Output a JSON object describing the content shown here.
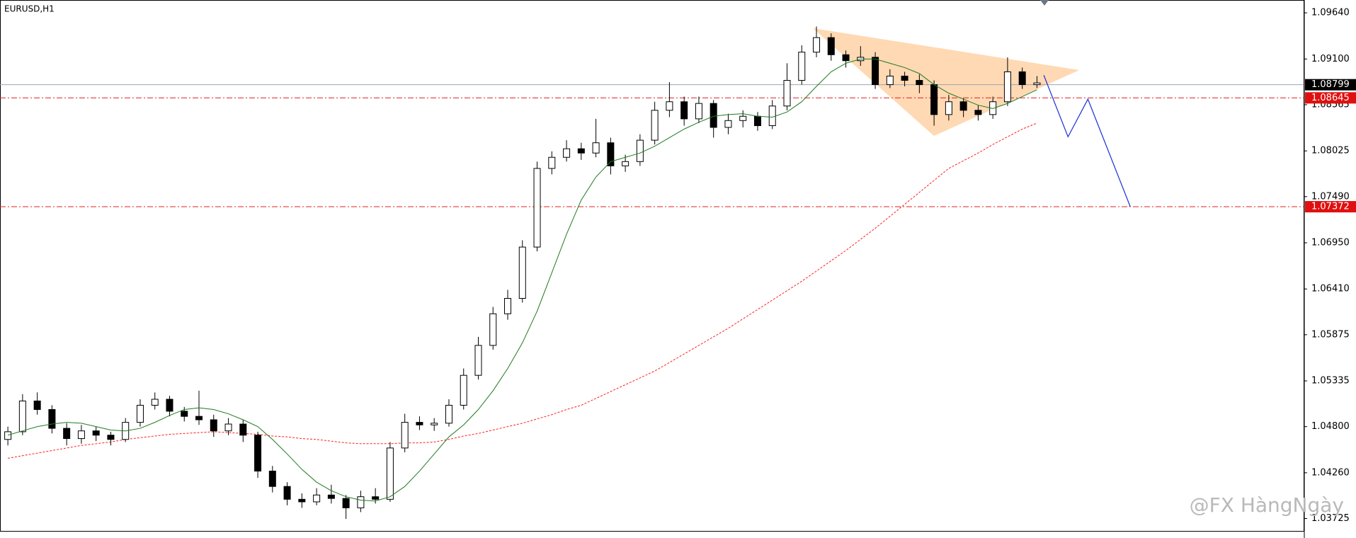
{
  "chart_data": {
    "type": "candlestick",
    "title": "EURUSD,H1",
    "watermark": "@FX HàngNgày",
    "open": [
      1.0465,
      1.0474,
      1.051,
      1.05,
      1.0478,
      1.0466,
      1.0475,
      1.047,
      1.0465,
      1.0485,
      1.0505,
      1.0512,
      1.0498,
      1.0492,
      1.0488,
      1.0475,
      1.0483,
      1.047,
      1.0428,
      1.041,
      1.0395,
      1.0392,
      1.04,
      1.0396,
      1.0385,
      1.0398,
      1.0395,
      1.0455,
      1.0485,
      1.0482,
      1.0484,
      1.0505,
      1.054,
      1.0575,
      1.0612,
      1.063,
      1.069,
      1.0782,
      1.0795,
      1.0805,
      1.08,
      1.0812,
      1.0785,
      1.079,
      1.0815,
      1.085,
      1.086,
      1.084,
      1.0858,
      1.083,
      1.0838,
      1.0843,
      1.0832,
      1.0855,
      1.0885,
      1.0918,
      1.0935,
      1.0915,
      1.0908,
      1.0912,
      1.088,
      1.089,
      1.0885,
      1.088,
      1.0845,
      1.086,
      1.085,
      1.0845,
      1.086,
      1.0895,
      1.088
    ],
    "high": [
      1.048,
      1.0518,
      1.052,
      1.0505,
      1.0484,
      1.0482,
      1.048,
      1.0474,
      1.049,
      1.0512,
      1.052,
      1.0516,
      1.0503,
      1.0522,
      1.0494,
      1.049,
      1.0488,
      1.0474,
      1.0434,
      1.0415,
      1.0402,
      1.0408,
      1.0412,
      1.04,
      1.0405,
      1.0408,
      1.0462,
      1.0495,
      1.0492,
      1.049,
      1.0512,
      1.0548,
      1.0585,
      1.062,
      1.064,
      1.0698,
      1.079,
      1.0802,
      1.0815,
      1.0812,
      1.084,
      1.0818,
      1.0798,
      1.0822,
      1.086,
      1.0883,
      1.0866,
      1.0866,
      1.0862,
      1.0846,
      1.085,
      1.0848,
      1.0862,
      1.0905,
      1.0926,
      1.0948,
      1.094,
      1.092,
      1.0925,
      1.0918,
      1.0898,
      1.0895,
      1.0892,
      1.0885,
      1.0868,
      1.0864,
      1.0856,
      1.0866,
      1.0912,
      1.09,
      1.089
    ],
    "low": [
      1.0458,
      1.047,
      1.0494,
      1.0472,
      1.0458,
      1.046,
      1.0463,
      1.0458,
      1.0462,
      1.048,
      1.05,
      1.0492,
      1.0486,
      1.0482,
      1.0468,
      1.047,
      1.0462,
      1.042,
      1.0403,
      1.0388,
      1.0385,
      1.0388,
      1.039,
      1.0372,
      1.038,
      1.039,
      1.0392,
      1.045,
      1.0476,
      1.0475,
      1.048,
      1.05,
      1.0535,
      1.057,
      1.0605,
      1.0625,
      1.0685,
      1.0775,
      1.079,
      1.0792,
      1.0795,
      1.0775,
      1.0778,
      1.0785,
      1.081,
      1.0842,
      1.0832,
      1.0835,
      1.0818,
      1.0822,
      1.083,
      1.0826,
      1.0828,
      1.085,
      1.088,
      1.0912,
      1.0908,
      1.09,
      1.0902,
      1.0875,
      1.0876,
      1.0878,
      1.087,
      1.0832,
      1.0838,
      1.0842,
      1.0838,
      1.084,
      1.0855,
      1.0875,
      1.0876
    ],
    "close": [
      1.0474,
      1.051,
      1.05,
      1.0478,
      1.0466,
      1.0475,
      1.047,
      1.0465,
      1.0485,
      1.0505,
      1.0512,
      1.0498,
      1.0492,
      1.0488,
      1.0475,
      1.0483,
      1.047,
      1.0428,
      1.041,
      1.0395,
      1.0392,
      1.04,
      1.0396,
      1.0385,
      1.0398,
      1.0395,
      1.0455,
      1.0485,
      1.0482,
      1.0484,
      1.0505,
      1.054,
      1.0575,
      1.0612,
      1.063,
      1.069,
      1.0782,
      1.0795,
      1.0805,
      1.08,
      1.0812,
      1.0785,
      1.079,
      1.0815,
      1.085,
      1.086,
      1.084,
      1.0858,
      1.083,
      1.0838,
      1.0843,
      1.0832,
      1.0855,
      1.0885,
      1.0918,
      1.0935,
      1.0915,
      1.0908,
      1.0912,
      1.088,
      1.089,
      1.0885,
      1.088,
      1.0845,
      1.086,
      1.085,
      1.0845,
      1.086,
      1.0895,
      1.088,
      1.0882
    ],
    "ma_fast": {
      "color": "#1f7a1f",
      "values": [
        1.047,
        1.0475,
        1.048,
        1.0483,
        1.0485,
        1.0484,
        1.048,
        1.0476,
        1.0475,
        1.0478,
        1.0485,
        1.0493,
        1.05,
        1.0502,
        1.05,
        1.0495,
        1.0488,
        1.048,
        1.0465,
        1.0448,
        1.043,
        1.0415,
        1.0405,
        1.0398,
        1.0394,
        1.0393,
        1.0398,
        1.041,
        1.0428,
        1.0448,
        1.0468,
        1.0482,
        1.05,
        1.0522,
        1.0548,
        1.0578,
        1.0615,
        1.066,
        1.0705,
        1.0745,
        1.0772,
        1.079,
        1.0795,
        1.08,
        1.0808,
        1.0818,
        1.0828,
        1.0836,
        1.0843,
        1.0845,
        1.0846,
        1.0843,
        1.0842,
        1.0848,
        1.086,
        1.0878,
        1.0895,
        1.0905,
        1.091,
        1.091,
        1.0905,
        1.09,
        1.0893,
        1.088,
        1.087,
        1.0863,
        1.0856,
        1.0852,
        1.0858,
        1.0866,
        1.0874
      ]
    },
    "ma_slow": {
      "color": "#ff2020",
      "values": [
        1.0443,
        1.0446,
        1.0449,
        1.0452,
        1.0455,
        1.0458,
        1.046,
        1.0462,
        1.0465,
        1.0467,
        1.0469,
        1.0471,
        1.0472,
        1.0473,
        1.0474,
        1.0473,
        1.0472,
        1.0471,
        1.0469,
        1.0468,
        1.0466,
        1.0465,
        1.0463,
        1.0461,
        1.046,
        1.046,
        1.046,
        1.0461,
        1.0461,
        1.0462,
        1.0465,
        1.0469,
        1.0472,
        1.0476,
        1.048,
        1.0484,
        1.0489,
        1.0494,
        1.05,
        1.0505,
        1.0513,
        1.0521,
        1.0529,
        1.0537,
        1.0545,
        1.0555,
        1.0565,
        1.0575,
        1.0585,
        1.0595,
        1.0606,
        1.0617,
        1.0628,
        1.0639,
        1.065,
        1.0662,
        1.0674,
        1.0686,
        1.0699,
        1.0712,
        1.0726,
        1.074,
        1.0754,
        1.0768,
        1.0782,
        1.0791,
        1.08,
        1.081,
        1.0819,
        1.0828,
        1.0835
      ]
    },
    "ylim": [
      1.0358,
      1.0979
    ],
    "yticks": [
      {
        "value": 1.0964,
        "label": "1.09640"
      },
      {
        "value": 1.091,
        "label": "1.09100"
      },
      1.08565,
      1.08025,
      {
        "value": 1.0749,
        "label": "1.07490"
      },
      {
        "value": 1.0695,
        "label": "1.06950"
      },
      {
        "value": 1.0641,
        "label": "1.06410"
      },
      1.05875,
      1.05335,
      {
        "value": 1.048,
        "label": "1.04800"
      },
      {
        "value": 1.0426,
        "label": "1.04260"
      },
      1.03725
    ],
    "price_lines": [
      {
        "price": 1.08799,
        "color": "#9aa6b2",
        "label_color": "#000000"
      },
      {
        "price": 1.08645,
        "color": "#e02020",
        "label_color": "#e01010"
      },
      {
        "price": 1.07372,
        "color": "#e02020",
        "label_color": "#e01010"
      }
    ],
    "triangle": {
      "color": "#ffd9b3",
      "prices": [
        1.0946,
        1.0897,
        1.082
      ]
    },
    "projection": {
      "color": "#1a2fd6",
      "prices": [
        1.0891,
        1.0819,
        1.0863,
        1.07372
      ]
    }
  }
}
